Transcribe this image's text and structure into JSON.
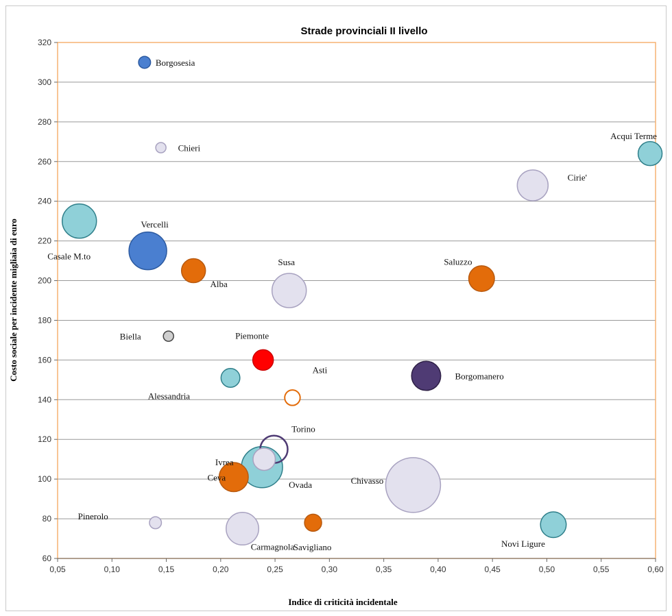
{
  "chart_data": {
    "type": "bubble",
    "title": "Strade provinciali  II livello",
    "xlabel": "Indice di criticità incidentale",
    "ylabel": "Costo sociale per incidente migliaia di euro",
    "xlim": [
      0.05,
      0.6
    ],
    "ylim": [
      60,
      320
    ],
    "x_ticks": [
      "0,05",
      "0,10",
      "0,15",
      "0,20",
      "0,25",
      "0,30",
      "0,35",
      "0,40",
      "0,45",
      "0,50",
      "0,55",
      "0,60"
    ],
    "y_ticks": [
      "60",
      "80",
      "100",
      "120",
      "140",
      "160",
      "180",
      "200",
      "220",
      "240",
      "260",
      "280",
      "300",
      "320"
    ],
    "grid": "horizontal",
    "colors": {
      "blue": "#4a7fd0",
      "lavender": "#e3e1ee",
      "teal": "#8fd0d8",
      "orange": "#e36c0a",
      "red": "#ff0000",
      "gray": "#cfcfcf",
      "purple": "#4f3b74",
      "frame": "#f5b272",
      "grid": "#999999"
    },
    "points": [
      {
        "name": "Borgosesia",
        "x": 0.13,
        "y": 310,
        "size": 0.35,
        "color": "blue"
      },
      {
        "name": "Chieri",
        "x": 0.145,
        "y": 267,
        "size": 0.3,
        "color": "lavender"
      },
      {
        "name": "Acqui Terme",
        "x": 0.595,
        "y": 264,
        "size": 0.7,
        "color": "teal"
      },
      {
        "name": "Cirie'",
        "x": 0.487,
        "y": 248,
        "size": 0.9,
        "color": "lavender"
      },
      {
        "name": "Casale M.to",
        "x": 0.07,
        "y": 230,
        "size": 1.0,
        "color": "teal"
      },
      {
        "name": "Vercelli",
        "x": 0.133,
        "y": 215,
        "size": 1.1,
        "color": "blue"
      },
      {
        "name": "Alba",
        "x": 0.175,
        "y": 205,
        "size": 0.7,
        "color": "orange"
      },
      {
        "name": "Saluzzo",
        "x": 0.44,
        "y": 201,
        "size": 0.75,
        "color": "orange"
      },
      {
        "name": "Susa",
        "x": 0.263,
        "y": 195,
        "size": 1.0,
        "color": "lavender"
      },
      {
        "name": "Biella",
        "x": 0.152,
        "y": 172,
        "size": 0.3,
        "color": "gray"
      },
      {
        "name": "Piemonte",
        "x": 0.239,
        "y": 160,
        "size": 0.6,
        "color": "red"
      },
      {
        "name": "Asti",
        "x": 0.266,
        "y": 141,
        "size": 0.45,
        "color": "white_orange"
      },
      {
        "name": "Alessandria",
        "x": 0.209,
        "y": 151,
        "size": 0.55,
        "color": "teal"
      },
      {
        "name": "Borgomanero",
        "x": 0.389,
        "y": 152,
        "size": 0.85,
        "color": "purple"
      },
      {
        "name": "Torino",
        "x": 0.249,
        "y": 115,
        "size": 0.8,
        "color": "white_purple"
      },
      {
        "name": "Ivrea",
        "x": 0.24,
        "y": 110,
        "size": 0.65,
        "color": "lavender"
      },
      {
        "name": "Ceva",
        "x": 0.212,
        "y": 101,
        "size": 0.85,
        "color": "orange"
      },
      {
        "name": "Ovada",
        "x": 0.238,
        "y": 106,
        "size": 1.2,
        "color": "teal"
      },
      {
        "name": "Chivasso",
        "x": 0.377,
        "y": 97,
        "size": 1.6,
        "color": "lavender"
      },
      {
        "name": "Pinerolo",
        "x": 0.14,
        "y": 78,
        "size": 0.35,
        "color": "lavender"
      },
      {
        "name": "Carmagnola",
        "x": 0.22,
        "y": 75,
        "size": 0.95,
        "color": "lavender"
      },
      {
        "name": "Savigliano",
        "x": 0.285,
        "y": 78,
        "size": 0.5,
        "color": "orange"
      },
      {
        "name": "Novi Ligure",
        "x": 0.506,
        "y": 77,
        "size": 0.75,
        "color": "teal"
      }
    ]
  }
}
